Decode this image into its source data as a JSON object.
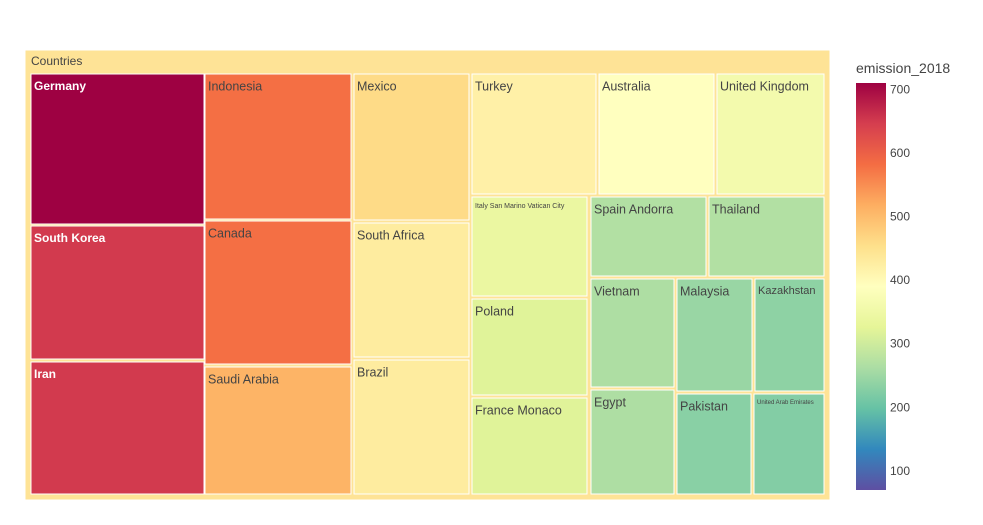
{
  "chart_data": {
    "type": "treemap",
    "root_label": "Countries",
    "colorbar": {
      "title": "emission_2018",
      "range": [
        70,
        710
      ],
      "ticks": [
        100,
        200,
        300,
        400,
        500,
        600,
        700
      ],
      "colorscale": [
        "#5e4fa2",
        "#3288bd",
        "#66c2a5",
        "#abdda4",
        "#e6f598",
        "#ffffbf",
        "#fee08b",
        "#fdae61",
        "#f46d43",
        "#d53e4f",
        "#9e0142"
      ]
    },
    "items": [
      {
        "label": "Germany",
        "value": 710
      },
      {
        "label": "South Korea",
        "value": 650
      },
      {
        "label": "Iran",
        "value": 650
      },
      {
        "label": "Indonesia",
        "value": 580
      },
      {
        "label": "Canada",
        "value": 580
      },
      {
        "label": "Saudi Arabia",
        "value": 510
      },
      {
        "label": "Mexico",
        "value": 460
      },
      {
        "label": "South Africa",
        "value": 430
      },
      {
        "label": "Brazil",
        "value": 430
      },
      {
        "label": "Turkey",
        "value": 420
      },
      {
        "label": "Australia",
        "value": 390
      },
      {
        "label": "United Kingdom",
        "value": 360
      },
      {
        "label": "Italy San Marino Vatican City",
        "value": 340
      },
      {
        "label": "Poland",
        "value": 320
      },
      {
        "label": "France Monaco",
        "value": 320
      },
      {
        "label": "Spain Andorra",
        "value": 270
      },
      {
        "label": "Thailand",
        "value": 270
      },
      {
        "label": "Vietnam",
        "value": 265
      },
      {
        "label": "Malaysia",
        "value": 245
      },
      {
        "label": "Kazakhstan",
        "value": 235
      },
      {
        "label": "Egypt",
        "value": 265
      },
      {
        "label": "Pakistan",
        "value": 230
      },
      {
        "label": "United Arab Emirates",
        "value": 225
      }
    ]
  }
}
